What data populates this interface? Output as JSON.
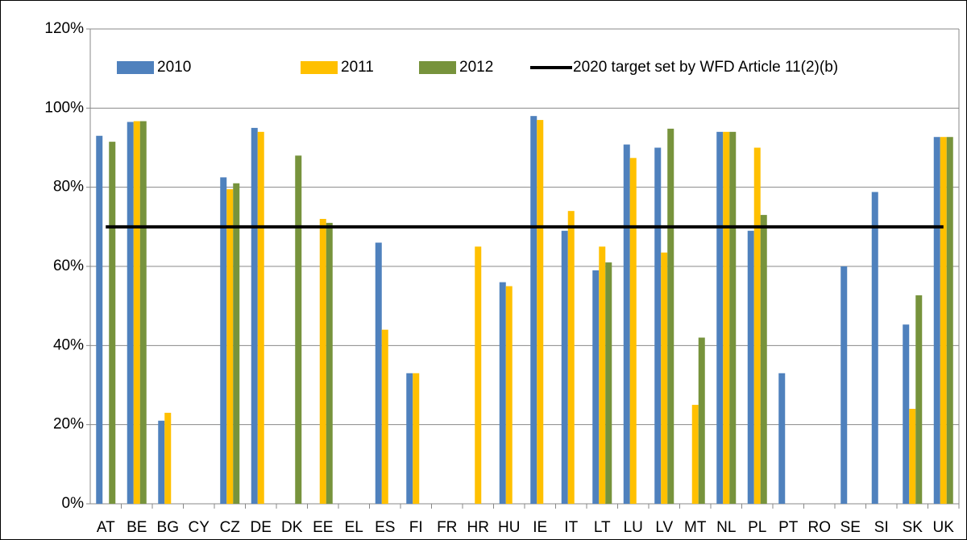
{
  "chart_data": {
    "type": "bar",
    "categories": [
      "AT",
      "BE",
      "BG",
      "CY",
      "CZ",
      "DE",
      "DK",
      "EE",
      "EL",
      "ES",
      "FI",
      "FR",
      "HR",
      "HU",
      "IE",
      "IT",
      "LT",
      "LU",
      "LV",
      "MT",
      "NL",
      "PL",
      "PT",
      "RO",
      "SE",
      "SI",
      "SK",
      "UK"
    ],
    "series": [
      {
        "name": "2010",
        "color": "#4f81bd",
        "values": [
          93,
          96.5,
          21,
          null,
          82.5,
          95,
          null,
          null,
          null,
          66,
          33,
          null,
          null,
          56,
          98,
          69,
          59,
          90.8,
          90,
          null,
          94,
          69,
          33,
          null,
          60,
          78.8,
          45.3,
          92.7
        ]
      },
      {
        "name": "2011",
        "color": "#ffc000",
        "values": [
          null,
          96.7,
          23,
          null,
          79.5,
          94,
          null,
          72,
          null,
          44,
          33,
          null,
          65,
          55,
          97,
          74,
          65,
          87.4,
          63.5,
          25,
          94,
          90,
          null,
          null,
          null,
          null,
          24,
          92.7
        ]
      },
      {
        "name": "2012",
        "color": "#77933c",
        "values": [
          91.5,
          96.7,
          null,
          null,
          81,
          null,
          88,
          71,
          null,
          null,
          null,
          null,
          null,
          null,
          null,
          null,
          61,
          null,
          94.8,
          42,
          94,
          73,
          null,
          null,
          null,
          null,
          52.7,
          92.7
        ]
      }
    ],
    "target": {
      "name": "2020 target set by WFD Article 11(2)(b)",
      "value": 70,
      "color": "#000000"
    },
    "ylim": [
      0,
      120
    ],
    "yticks": [
      {
        "value": 0,
        "label": "0%"
      },
      {
        "value": 20,
        "label": "20%"
      },
      {
        "value": 40,
        "label": "40%"
      },
      {
        "value": 60,
        "label": "60%"
      },
      {
        "value": 80,
        "label": "80%"
      },
      {
        "value": 100,
        "label": "100%"
      },
      {
        "value": 120,
        "label": "120%"
      }
    ],
    "grid": true
  }
}
